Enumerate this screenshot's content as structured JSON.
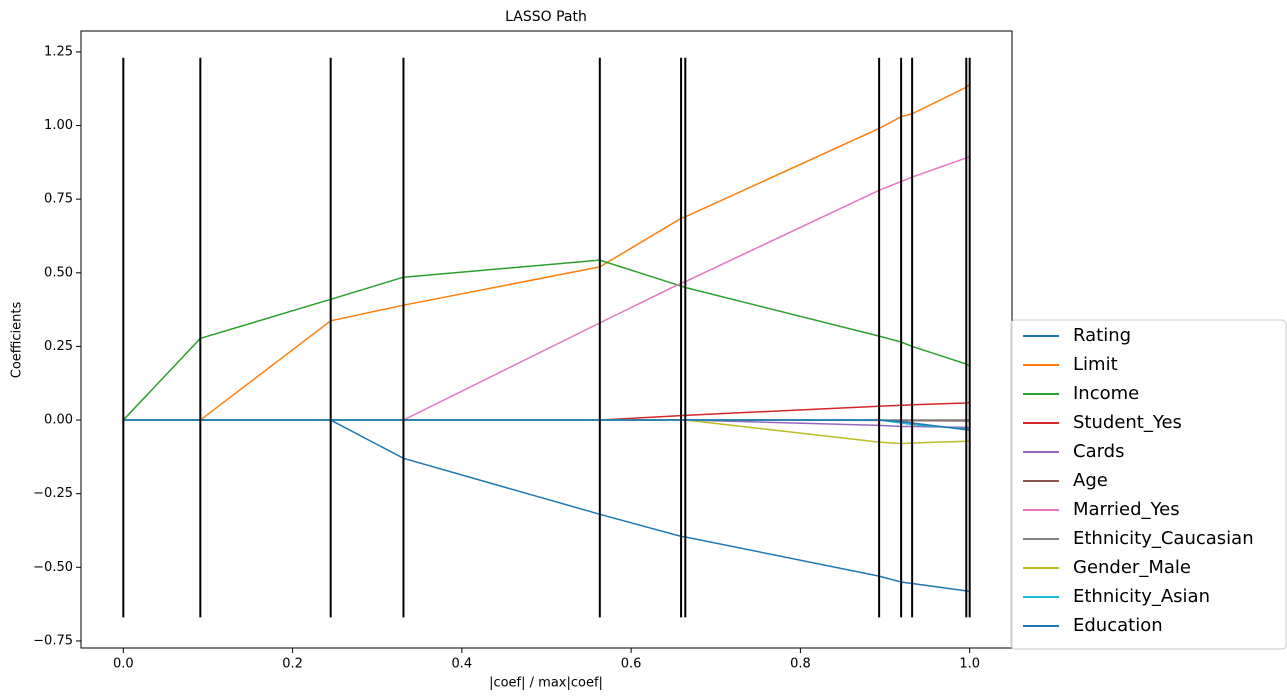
{
  "chart_data": {
    "type": "line",
    "title": "LASSO Path",
    "x_label": "|coef| / max|coef|",
    "y_label": "Coefficients",
    "x": [
      0,
      0.091,
      0.245,
      0.331,
      0.563,
      0.659,
      0.664,
      0.893,
      0.919,
      0.932,
      0.996,
      1.0
    ],
    "series": [
      {
        "name": "Rating",
        "color": "#1f77b4",
        "values": [
          0,
          0,
          0,
          -0.13,
          -0.32,
          -0.395,
          -0.397,
          -0.53,
          -0.55,
          -0.555,
          -0.58,
          -0.583
        ]
      },
      {
        "name": "Limit",
        "color": "#ff7f0e",
        "values": [
          0,
          0,
          0.337,
          0.39,
          0.52,
          0.685,
          0.69,
          0.99,
          1.03,
          1.04,
          1.13,
          1.14
        ]
      },
      {
        "name": "Income",
        "color": "#2ca02c",
        "values": [
          0,
          0.277,
          0.41,
          0.485,
          0.543,
          0.455,
          0.45,
          0.285,
          0.265,
          0.25,
          0.19,
          0.183
        ]
      },
      {
        "name": "Student_Yes",
        "color": "#d62728",
        "values": [
          0,
          0,
          0,
          0,
          0,
          0.015,
          0.016,
          0.047,
          0.05,
          0.052,
          0.058,
          0.06
        ]
      },
      {
        "name": "Cards",
        "color": "#9467bd",
        "values": [
          0,
          0,
          0,
          0,
          0,
          0,
          0,
          -0.018,
          -0.022,
          -0.022,
          -0.025,
          -0.026
        ]
      },
      {
        "name": "Age",
        "color": "#8c564b",
        "values": [
          0,
          0,
          0,
          0,
          0,
          0,
          0,
          -0.001,
          -0.002,
          -0.002,
          -0.003,
          -0.003
        ]
      },
      {
        "name": "Married_Yes",
        "color": "#e377c2",
        "values": [
          0,
          0,
          0,
          0,
          0.33,
          0.465,
          0.47,
          0.78,
          0.81,
          0.825,
          0.89,
          0.895
        ]
      },
      {
        "name": "Ethnicity_Caucasian",
        "color": "#7f7f7f",
        "values": [
          0,
          0,
          0,
          0,
          0,
          0,
          0,
          0,
          0,
          0,
          0,
          0
        ]
      },
      {
        "name": "Gender_Male",
        "color": "#bcbd22",
        "values": [
          0,
          0,
          0,
          0,
          0,
          0,
          0,
          -0.075,
          -0.08,
          -0.078,
          -0.072,
          -0.071
        ]
      },
      {
        "name": "Ethnicity_Asian",
        "color": "#17becf",
        "values": [
          0,
          0,
          0,
          0,
          0,
          0,
          0,
          0,
          -0.01,
          -0.015,
          -0.03,
          -0.032
        ]
      },
      {
        "name": "Education",
        "color": "#1f77b4",
        "values": [
          0,
          0,
          0,
          0,
          0,
          0,
          0,
          0,
          -0.005,
          -0.01,
          -0.033,
          -0.035
        ]
      }
    ],
    "vlines": {
      "x": [
        0,
        0.091,
        0.245,
        0.331,
        0.563,
        0.659,
        0.664,
        0.893,
        0.919,
        0.932,
        0.996,
        1.0
      ],
      "ymin": -0.67,
      "ymax": 1.23,
      "color": "#000000"
    },
    "xlim": [
      -0.05,
      1.05
    ],
    "ylim": [
      -0.774,
      1.321
    ],
    "xticks": [
      {
        "value": 0,
        "label": "0.0"
      },
      {
        "value": 0.2,
        "label": "0.2"
      },
      {
        "value": 0.4,
        "label": "0.4"
      },
      {
        "value": 0.6,
        "label": "0.6"
      },
      {
        "value": 0.8,
        "label": "0.8"
      },
      {
        "value": 1.0,
        "label": "1.0"
      }
    ],
    "yticks": [
      {
        "value": -0.75,
        "label": "−0.75"
      },
      {
        "value": -0.5,
        "label": "−0.50"
      },
      {
        "value": -0.25,
        "label": "−0.25"
      },
      {
        "value": 0,
        "label": "0.00"
      },
      {
        "value": 0.25,
        "label": "0.25"
      },
      {
        "value": 0.5,
        "label": "0.50"
      },
      {
        "value": 0.75,
        "label": "0.75"
      },
      {
        "value": 1.0,
        "label": "1.00"
      },
      {
        "value": 1.25,
        "label": "1.25"
      }
    ],
    "legend": "right"
  }
}
